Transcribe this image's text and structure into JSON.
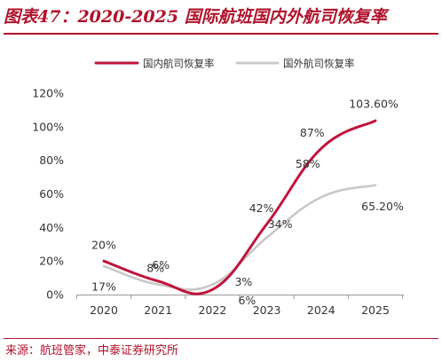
{
  "header": {
    "title": "图表47：2020-2025 国际航班国内外航司恢复率"
  },
  "footer": {
    "source": "来源：航班管家，中泰证券研究所"
  },
  "colors": {
    "accent": "#b0122b",
    "series_domestic": "#c0143c",
    "series_foreign": "#c8c8c8"
  },
  "chart_data": {
    "type": "line",
    "x": [
      "2020",
      "2021",
      "2022",
      "2023",
      "2024",
      "2025"
    ],
    "series": [
      {
        "name": "国内航司恢复率",
        "values": [
          20,
          8,
          3,
          42,
          87,
          103.6
        ],
        "labels": [
          "20%",
          "8%",
          "3%",
          "42%",
          "87%",
          "103.60%"
        ]
      },
      {
        "name": "国外航司恢复率",
        "values": [
          17,
          6,
          6,
          34,
          58,
          65.2
        ],
        "labels": [
          "17%",
          "6%",
          "6%",
          "34%",
          "58%",
          "65.20%"
        ]
      }
    ],
    "y_ticks": [
      "0%",
      "20%",
      "40%",
      "60%",
      "80%",
      "100%",
      "120%"
    ],
    "ylim": [
      0,
      120
    ],
    "smooth": true,
    "grid": false,
    "legend_position": "top"
  }
}
